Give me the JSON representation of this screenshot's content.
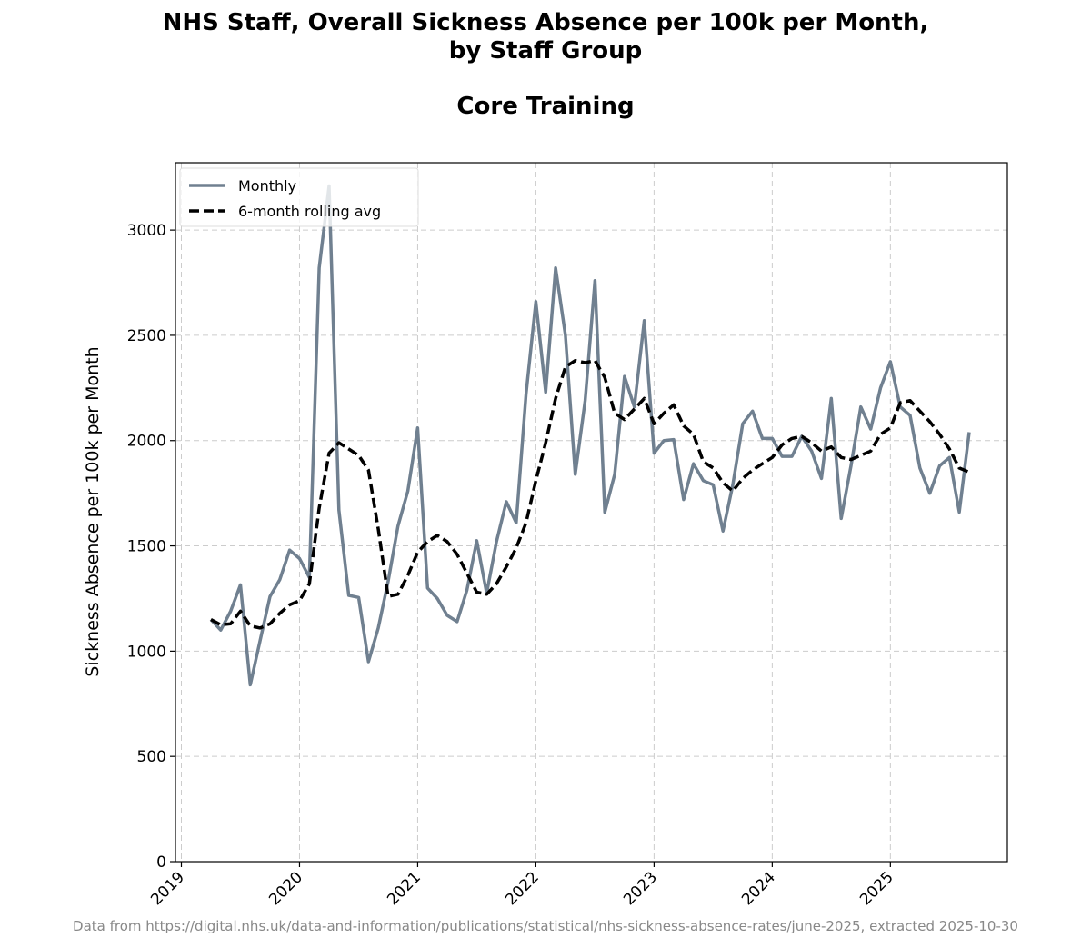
{
  "chart_data": {
    "type": "line",
    "title_lines": [
      "NHS Staff, Overall Sickness Absence per 100k per Month,",
      "by Staff Group"
    ],
    "subtitle": "Core Training",
    "ylabel": "Sickness Absence per 100k per Month",
    "xlabel": "",
    "ylim": [
      0,
      3320
    ],
    "xlim": [
      2018.95,
      2025.99
    ],
    "y_ticks": [
      0,
      500,
      1000,
      1500,
      2000,
      2500,
      3000
    ],
    "x_ticks": [
      2019,
      2020,
      2021,
      2022,
      2023,
      2024,
      2025
    ],
    "grid": true,
    "legend_position": "top-left",
    "colors": {
      "monthly": "#708090",
      "rolling": "#000000",
      "grid": "#cccccc"
    },
    "series": [
      {
        "name": "Monthly",
        "start": [
          2019,
          4
        ],
        "values": [
          1150,
          1100,
          1190,
          1315,
          840,
          1050,
          1260,
          1340,
          1480,
          1440,
          1350,
          2820,
          3210,
          1670,
          1265,
          1255,
          950,
          1110,
          1330,
          1595,
          1760,
          2060,
          1300,
          1250,
          1170,
          1140,
          1290,
          1525,
          1275,
          1520,
          1710,
          1610,
          2220,
          2660,
          2230,
          2820,
          2500,
          1840,
          2190,
          2760,
          1660,
          1840,
          2305,
          2160,
          2570,
          1940,
          2000,
          2005,
          1720,
          1890,
          1810,
          1790,
          1570,
          1790,
          2080,
          2140,
          2010,
          2010,
          1925,
          1925,
          2020,
          1950,
          1820,
          2200,
          1630,
          1880,
          2160,
          2055,
          2250,
          2375,
          2160,
          2120,
          1870,
          1750,
          1880,
          1920,
          1660,
          2040
        ]
      },
      {
        "name": "6-month rolling avg",
        "start": [
          2019,
          4
        ],
        "values": [
          1150,
          1125,
          1130,
          1190,
          1120,
          1110,
          1130,
          1180,
          1220,
          1240,
          1320,
          1680,
          1940,
          1990,
          1960,
          1930,
          1860,
          1580,
          1260,
          1270,
          1360,
          1470,
          1520,
          1550,
          1520,
          1460,
          1370,
          1280,
          1270,
          1320,
          1400,
          1490,
          1610,
          1810,
          1990,
          2200,
          2350,
          2380,
          2370,
          2380,
          2300,
          2130,
          2100,
          2150,
          2200,
          2080,
          2130,
          2170,
          2070,
          2030,
          1900,
          1870,
          1800,
          1760,
          1820,
          1860,
          1890,
          1920,
          1980,
          2010,
          2020,
          1990,
          1950,
          1970,
          1920,
          1910,
          1930,
          1950,
          2030,
          2060,
          2180,
          2190,
          2140,
          2090,
          2030,
          1960,
          1870,
          1850
        ]
      }
    ]
  },
  "footer_text": "Data from https://digital.nhs.uk/data-and-information/publications/statistical/nhs-sickness-absence-rates/june-2025, extracted 2025-10-30"
}
